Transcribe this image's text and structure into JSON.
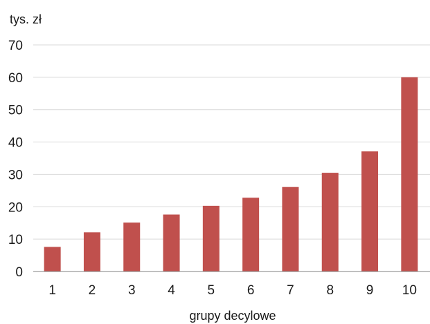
{
  "chart_data": {
    "type": "bar",
    "ylabel": "tys. zł",
    "xlabel": "grupy decylowe",
    "categories": [
      "1",
      "2",
      "3",
      "4",
      "5",
      "6",
      "7",
      "8",
      "9",
      "10"
    ],
    "values": [
      7.6,
      12.1,
      15.1,
      17.6,
      20.3,
      22.8,
      26.1,
      30.5,
      37.1,
      60.0
    ],
    "ylim": [
      0,
      70
    ],
    "yticks": [
      0,
      10,
      20,
      30,
      40,
      50,
      60,
      70
    ],
    "grid": true,
    "bar_color": "#c0504d",
    "legend": "none"
  }
}
